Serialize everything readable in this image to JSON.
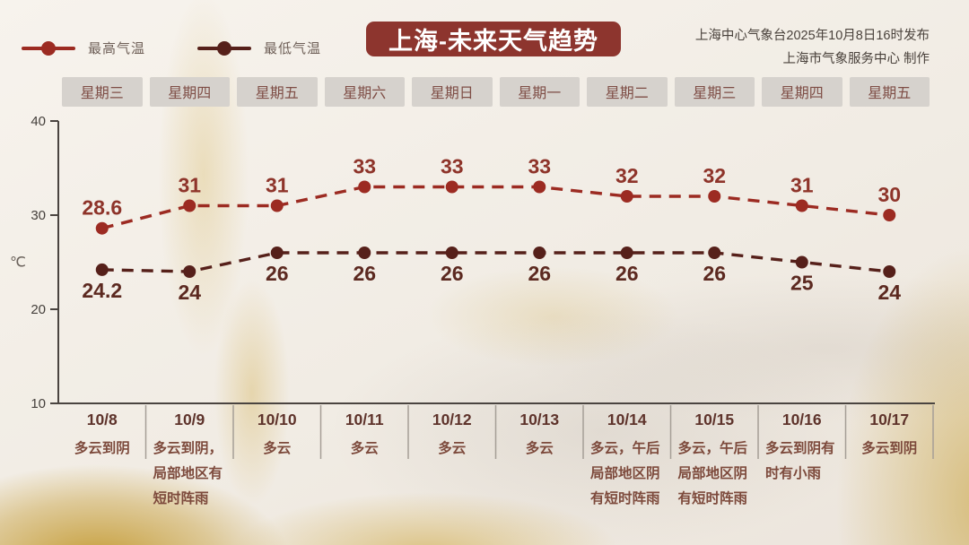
{
  "legend": {
    "items": [
      {
        "label": "最高气温",
        "color": "#9c2b22"
      },
      {
        "label": "最低气温",
        "color": "#56201a"
      }
    ]
  },
  "header": {
    "title": "上海-未来天气趋势",
    "title_bg": "#8d352e",
    "source_line1": "上海中心气象台2025年10月8日16时发布",
    "source_line2": "上海市气象服务中心 制作"
  },
  "chart_data": {
    "type": "line",
    "x_weekdays": [
      "星期三",
      "星期四",
      "星期五",
      "星期六",
      "星期日",
      "星期一",
      "星期二",
      "星期三",
      "星期四",
      "星期五"
    ],
    "x_dates": [
      "10/8",
      "10/9",
      "10/10",
      "10/11",
      "10/12",
      "10/13",
      "10/14",
      "10/15",
      "10/16",
      "10/17"
    ],
    "weather": [
      "多云到阴",
      "多云到阴，局部地区有短时阵雨",
      "多云",
      "多云",
      "多云",
      "多云",
      "多云，午后局部地区阴有短时阵雨",
      "多云，午后局部地区阴有短时阵雨",
      "多云到阴有时有小雨",
      "多云到阴"
    ],
    "series": [
      {
        "name": "最高气温",
        "values": [
          28.6,
          31,
          31,
          33,
          33,
          33,
          32,
          32,
          31,
          30
        ],
        "line_color": "#9c2b22",
        "label_color": "#8e342a"
      },
      {
        "name": "最低气温",
        "values": [
          24.2,
          24,
          26,
          26,
          26,
          26,
          26,
          26,
          25,
          24
        ],
        "line_color": "#56201a",
        "label_color": "#5c2920"
      }
    ],
    "ylabel": "℃",
    "yticks": [
      40,
      30,
      20,
      10
    ],
    "ylim": [
      10,
      40
    ],
    "grid": false,
    "legend_position": "top-left"
  }
}
